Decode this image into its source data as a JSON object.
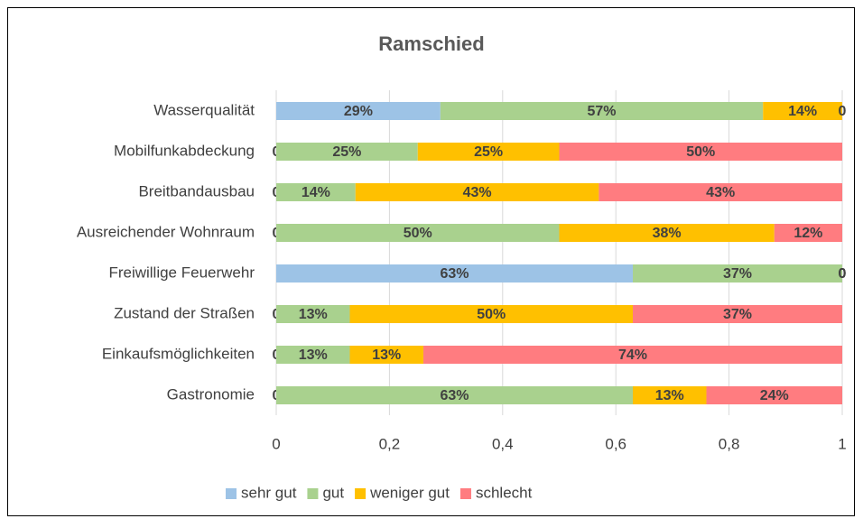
{
  "chart_data": {
    "type": "stacked_barh",
    "title": "Ramschied",
    "categories": [
      "Wasserqualität",
      "Mobilfunkabdeckung",
      "Breitbandausbau",
      "Ausreichender Wohnraum",
      "Freiwillige Feuerwehr",
      "Zustand der Straßen",
      "Einkaufsmöglichkeiten",
      "Gastronomie"
    ],
    "series": [
      {
        "name": "sehr gut",
        "color": "#9dc3e6",
        "values": [
          0.29,
          0,
          0,
          0,
          0.63,
          0,
          0,
          0
        ],
        "value_labels": [
          "29%",
          "0",
          "0",
          "0",
          "63%",
          "0",
          "0",
          "0"
        ]
      },
      {
        "name": "gut",
        "color": "#a9d18e",
        "values": [
          0.57,
          0.25,
          0.14,
          0.5,
          0.37,
          0.13,
          0.13,
          0.63
        ],
        "value_labels": [
          "57%",
          "25%",
          "14%",
          "50%",
          "37%",
          "13%",
          "13%",
          "63%"
        ]
      },
      {
        "name": "weniger gut",
        "color": "#ffc000",
        "values": [
          0.14,
          0.25,
          0.43,
          0.38,
          0,
          0.5,
          0.13,
          0.13
        ],
        "value_labels": [
          "14%",
          "25%",
          "43%",
          "38%",
          "0",
          "50%",
          "13%",
          "13%"
        ]
      },
      {
        "name": "schlecht",
        "color": "#ff7c80",
        "values": [
          0,
          0.5,
          0.43,
          0.12,
          0,
          0.37,
          0.74,
          0.24
        ],
        "value_labels": [
          "0",
          "50%",
          "43%",
          "12%",
          "0",
          "37%",
          "74%",
          "24%"
        ]
      }
    ],
    "xlim": [
      0,
      1
    ],
    "xticks": [
      0,
      {
        "value": 0.2,
        "label": "0,2"
      },
      {
        "value": 0.4,
        "label": "0,4"
      },
      {
        "value": 0.6,
        "label": "0,6"
      },
      {
        "value": 0.8,
        "label": "0,8"
      },
      1
    ],
    "grid": true,
    "legend": "bottom"
  }
}
